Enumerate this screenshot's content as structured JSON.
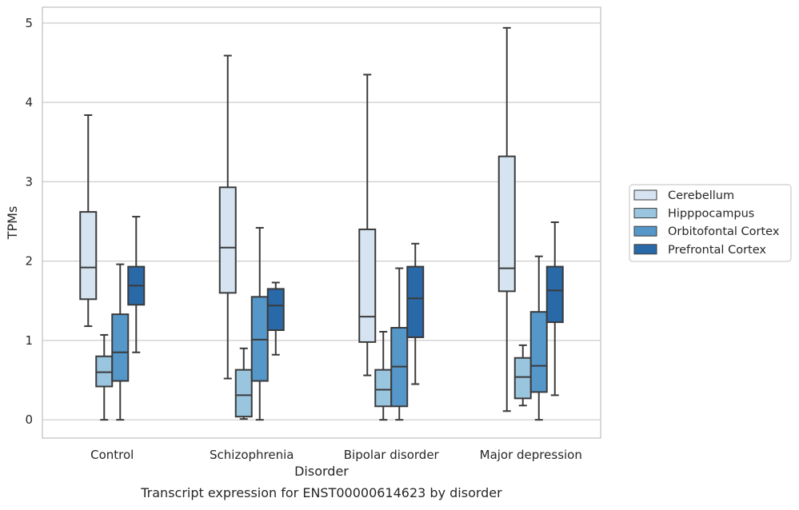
{
  "caption": "Transcript expression for ENST00000614623 by disorder",
  "chart_data": {
    "type": "box",
    "title": "",
    "xlabel": "Disorder",
    "ylabel": "TPMs",
    "ylim": [
      -0.23,
      5.2
    ],
    "yticks": [
      0,
      1,
      2,
      3,
      4,
      5
    ],
    "grid": true,
    "legend_position": "right",
    "categories": [
      "Control",
      "Schizophrenia",
      "Bipolar disorder",
      "Major depression"
    ],
    "series": [
      {
        "name": "Cerebellum",
        "color": "#d6e4f2",
        "boxes": [
          {
            "whislo": 1.18,
            "q1": 1.52,
            "med": 1.92,
            "q3": 2.62,
            "whishi": 3.84
          },
          {
            "whislo": 0.52,
            "q1": 1.6,
            "med": 2.17,
            "q3": 2.93,
            "whishi": 4.59
          },
          {
            "whislo": 0.56,
            "q1": 0.98,
            "med": 1.3,
            "q3": 2.4,
            "whishi": 4.35
          },
          {
            "whislo": 0.11,
            "q1": 1.62,
            "med": 1.91,
            "q3": 3.32,
            "whishi": 4.94
          }
        ]
      },
      {
        "name": "Hipppocampus",
        "color": "#9ac5df",
        "boxes": [
          {
            "whislo": 0.0,
            "q1": 0.42,
            "med": 0.6,
            "q3": 0.8,
            "whishi": 1.07
          },
          {
            "whislo": 0.01,
            "q1": 0.04,
            "med": 0.31,
            "q3": 0.63,
            "whishi": 0.9
          },
          {
            "whislo": 0.0,
            "q1": 0.17,
            "med": 0.38,
            "q3": 0.63,
            "whishi": 1.11
          },
          {
            "whislo": 0.18,
            "q1": 0.27,
            "med": 0.54,
            "q3": 0.78,
            "whishi": 0.94
          }
        ]
      },
      {
        "name": "Orbitofontal Cortex",
        "color": "#5597c9",
        "boxes": [
          {
            "whislo": 0.0,
            "q1": 0.49,
            "med": 0.85,
            "q3": 1.33,
            "whishi": 1.96
          },
          {
            "whislo": 0.0,
            "q1": 0.49,
            "med": 1.01,
            "q3": 1.55,
            "whishi": 2.42
          },
          {
            "whislo": 0.0,
            "q1": 0.17,
            "med": 0.67,
            "q3": 1.16,
            "whishi": 1.91
          },
          {
            "whislo": 0.0,
            "q1": 0.35,
            "med": 0.68,
            "q3": 1.36,
            "whishi": 2.06
          }
        ]
      },
      {
        "name": "Prefrontal Cortex",
        "color": "#2a69a8",
        "boxes": [
          {
            "whislo": 0.85,
            "q1": 1.45,
            "med": 1.69,
            "q3": 1.93,
            "whishi": 2.56
          },
          {
            "whislo": 0.82,
            "q1": 1.13,
            "med": 1.44,
            "q3": 1.65,
            "whishi": 1.73
          },
          {
            "whislo": 0.45,
            "q1": 1.04,
            "med": 1.53,
            "q3": 1.93,
            "whishi": 2.22
          },
          {
            "whislo": 0.31,
            "q1": 1.23,
            "med": 1.63,
            "q3": 1.93,
            "whishi": 2.49
          }
        ]
      }
    ]
  }
}
